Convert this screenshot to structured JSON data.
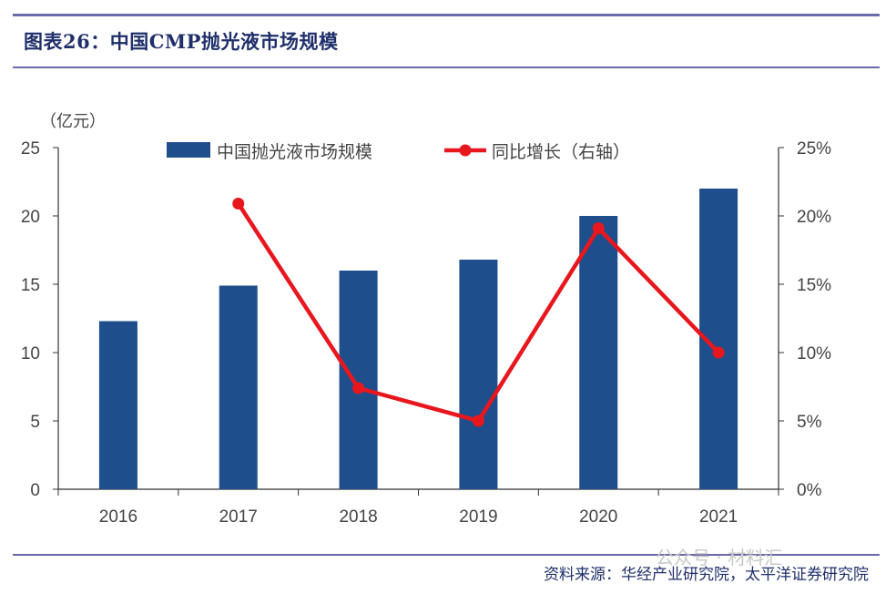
{
  "header": {
    "title": "图表26：中国CMP抛光液市场规模"
  },
  "footer": {
    "source": "资料来源：华经产业研究院，太平洋证券研究院",
    "watermark": "公众号 · 材料汇"
  },
  "colors": {
    "bar": "#1f4e8c",
    "line": "#e8171e",
    "rule": "#6a6aa8",
    "title": "#1f2f6b"
  },
  "chart_data": {
    "type": "bar",
    "title": "",
    "y_unit_label": "（亿元）",
    "categories": [
      "2016",
      "2017",
      "2018",
      "2019",
      "2020",
      "2021"
    ],
    "ylim": [
      0,
      25
    ],
    "y_ticks": [
      "0",
      "5",
      "10",
      "15",
      "20",
      "25"
    ],
    "y2lim": [
      0,
      0.25
    ],
    "y2_ticks": [
      "0%",
      "5%",
      "10%",
      "15%",
      "20%",
      "25%"
    ],
    "legend_position": "top",
    "grid": false,
    "series": [
      {
        "name": "中国抛光液市场规模",
        "type": "bar",
        "axis": "left",
        "values": [
          12.3,
          14.9,
          16.0,
          16.8,
          20.0,
          22.0
        ]
      },
      {
        "name": "同比增长（右轴）",
        "type": "line",
        "axis": "right",
        "values": [
          null,
          0.209,
          0.074,
          0.05,
          0.191,
          0.1
        ]
      }
    ]
  }
}
